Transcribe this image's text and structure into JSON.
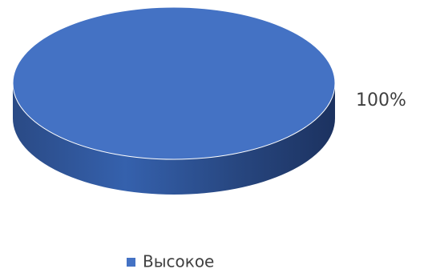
{
  "chart_data": {
    "type": "pie",
    "categories": [
      "Высокое"
    ],
    "values": [
      100
    ],
    "value_labels": [
      "100%"
    ],
    "colors": [
      "#4472c4"
    ],
    "legend": "bottom"
  }
}
